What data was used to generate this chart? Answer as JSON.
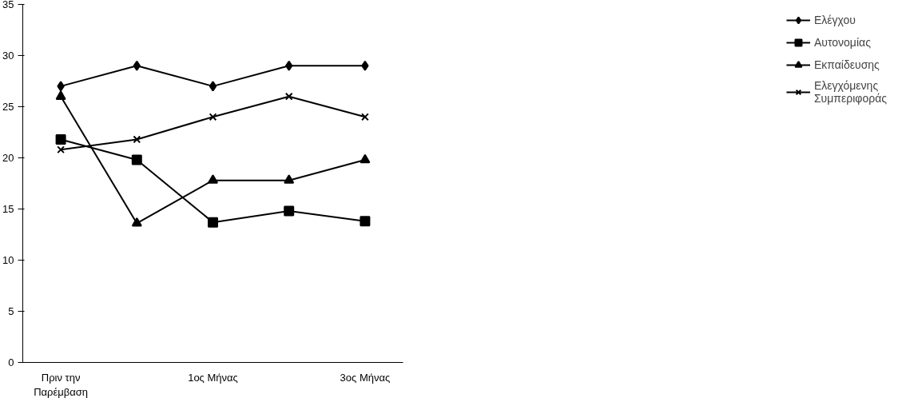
{
  "chart_data": {
    "type": "line",
    "categories": [
      "Πριν την Παρέμβαση",
      null,
      "1ος Μήνας",
      null,
      "3ος Μήνας"
    ],
    "series": [
      {
        "name": "Ελέγχου",
        "color": "#000000",
        "marker": "diamond",
        "values": [
          27,
          29,
          27,
          29,
          29
        ]
      },
      {
        "name": "Αυτονομίας",
        "color": "#000000",
        "marker": "square",
        "values": [
          21.8,
          19.8,
          13.7,
          14.8,
          13.8
        ]
      },
      {
        "name": "Εκπαίδευσης",
        "color": "#000000",
        "marker": "triangle",
        "values": [
          26,
          13.6,
          17.8,
          17.8,
          19.8
        ]
      },
      {
        "name": "Ελεγχόμενης Συμπεριφοράς",
        "color": "#000000",
        "marker": "cross",
        "values": [
          20.8,
          21.8,
          24,
          26,
          24
        ]
      }
    ],
    "ylim": [
      0,
      35
    ],
    "yticks": [
      0,
      5,
      10,
      15,
      20,
      25,
      30,
      35
    ],
    "grid": false,
    "legend": "right",
    "line_style": "solid"
  }
}
